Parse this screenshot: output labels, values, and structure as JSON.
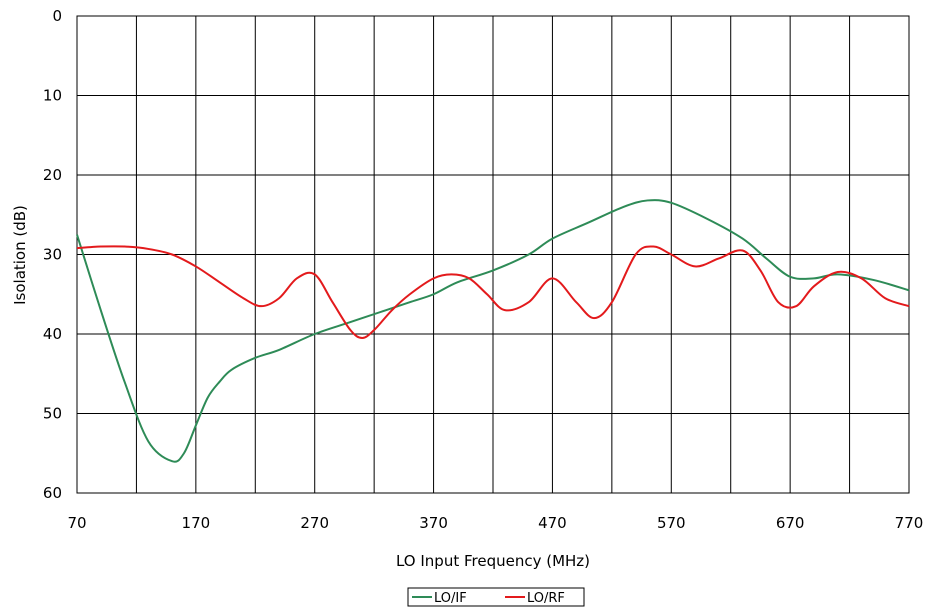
{
  "chart_data": {
    "type": "line",
    "title": "",
    "xlabel": "LO Input Frequency (MHz)",
    "ylabel": "Isolation (dB)",
    "xlim": [
      70,
      770
    ],
    "ylim": [
      0,
      60
    ],
    "y_inverted": true,
    "grid": true,
    "legend_position": "bottom-center",
    "x_tick_labels": [
      "70",
      "170",
      "270",
      "370",
      "470",
      "570",
      "670",
      "770"
    ],
    "y_tick_labels": [
      "0",
      "10",
      "20",
      "30",
      "40",
      "50",
      "60"
    ],
    "series": [
      {
        "name": "LO/IF",
        "color": "#2e8b57",
        "x": [
          70,
          90,
          110,
          130,
          150,
          160,
          170,
          180,
          190,
          200,
          220,
          240,
          270,
          300,
          330,
          350,
          370,
          390,
          420,
          450,
          470,
          500,
          530,
          550,
          570,
          600,
          630,
          650,
          670,
          690,
          710,
          740,
          770
        ],
        "y": [
          27.5,
          37,
          46,
          53.5,
          56,
          55,
          51.5,
          48,
          46,
          44.5,
          43,
          42,
          40,
          38.5,
          37,
          36,
          35,
          33.5,
          32,
          30,
          28,
          26,
          24,
          23.2,
          23.5,
          25.5,
          28,
          30.5,
          32.8,
          33,
          32.5,
          33.2,
          34.5
        ]
      },
      {
        "name": "LO/RF",
        "color": "#e31a1c",
        "x": [
          70,
          90,
          110,
          130,
          150,
          170,
          190,
          210,
          225,
          240,
          255,
          270,
          285,
          300,
          310,
          320,
          335,
          350,
          370,
          385,
          400,
          415,
          430,
          450,
          470,
          490,
          505,
          520,
          540,
          555,
          570,
          590,
          610,
          630,
          645,
          660,
          675,
          690,
          710,
          730,
          750,
          770
        ],
        "y": [
          29.2,
          29.0,
          29.0,
          29.3,
          30.0,
          31.5,
          33.5,
          35.5,
          36.5,
          35.5,
          33.0,
          32.5,
          36.0,
          39.5,
          40.5,
          39.5,
          37.0,
          35.0,
          33.0,
          32.5,
          33.0,
          35.0,
          37.0,
          36.0,
          33.0,
          36.0,
          38.0,
          36.0,
          30.0,
          29.0,
          30.0,
          31.5,
          30.5,
          29.5,
          32.0,
          36.0,
          36.5,
          34.0,
          32.2,
          33.0,
          35.5,
          36.5
        ]
      }
    ]
  }
}
